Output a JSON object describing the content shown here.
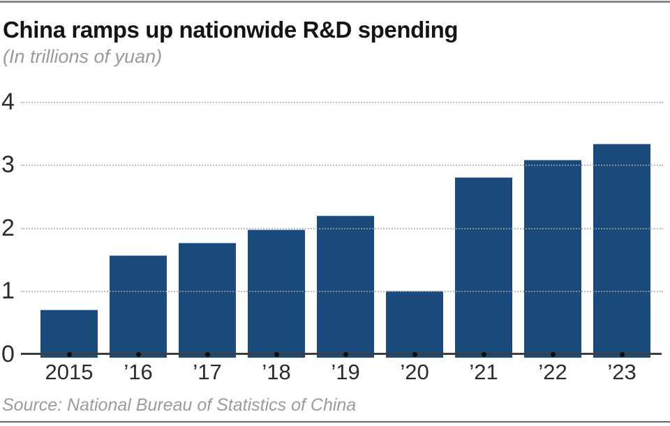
{
  "header": {
    "title": "China ramps up nationwide R&D spending",
    "subtitle": "(In trillions of yuan)"
  },
  "footer": {
    "source": "Source: National Bureau of Statistics of China"
  },
  "chart_data": {
    "type": "bar",
    "title": "China ramps up nationwide R&D spending",
    "subtitle": "(In trillions of yuan)",
    "categories": [
      "2015",
      "’16",
      "’17",
      "’18",
      "’19",
      "’20",
      "’21",
      "’22",
      "’23"
    ],
    "values": [
      0.7,
      1.56,
      1.76,
      1.97,
      2.2,
      1.0,
      2.8,
      3.08,
      3.33
    ],
    "xlabel": "",
    "ylabel": "",
    "yticks": [
      0,
      1,
      2,
      3,
      4
    ],
    "ylim": [
      0,
      4
    ],
    "grid": "horizontal-dotted",
    "legend": "none",
    "bar_color": "#1b4a7c",
    "source": "Source: National Bureau of Statistics of China"
  }
}
